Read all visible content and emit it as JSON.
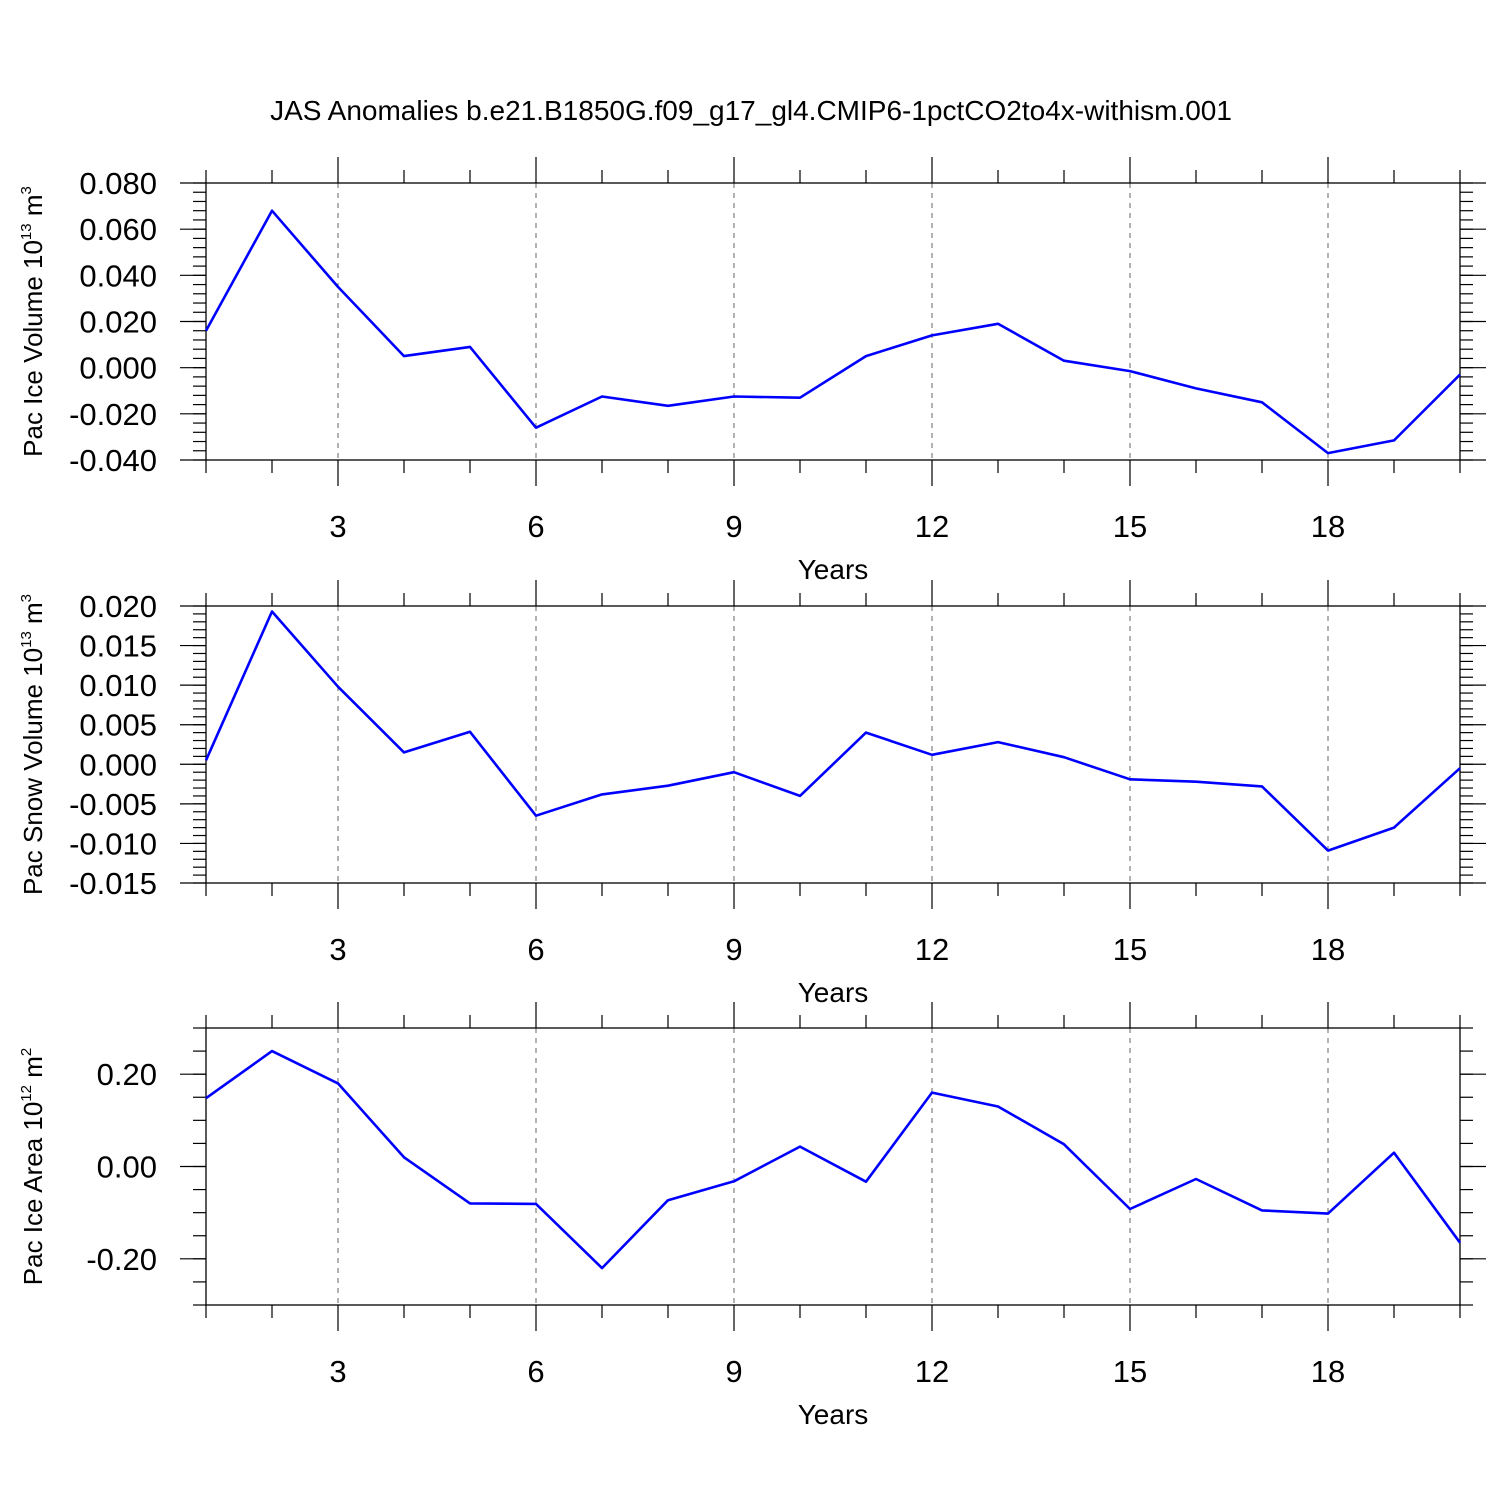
{
  "title": "JAS Anomalies b.e21.B1850G.f09_g17_gl4.CMIP6-1pctCO2to4x-withism.001",
  "colors": {
    "line": "#0000ff",
    "grid": "#808080",
    "axis": "#000000"
  },
  "chart_data": [
    {
      "type": "line",
      "title": "",
      "xlabel": "Years",
      "ylabel_parts": {
        "text": "Pac Ice Volume 10",
        "exp": "13",
        "unit": " m",
        "unit_exp": "3"
      },
      "xlim": [
        1,
        20
      ],
      "ylim": [
        -0.04,
        0.08
      ],
      "xticks": [
        3,
        6,
        9,
        12,
        15,
        18
      ],
      "xtick_labels": [
        "3",
        "6",
        "9",
        "12",
        "15",
        "18"
      ],
      "yticks": [
        -0.04,
        -0.02,
        0.0,
        0.02,
        0.04,
        0.06,
        0.08
      ],
      "ytick_labels": [
        "-0.040",
        "-0.020",
        "0.000",
        "0.020",
        "0.040",
        "0.060",
        "0.080"
      ],
      "y_minor_step": 0.004,
      "grid": "vertical dashed at major x ticks",
      "series": [
        {
          "name": "Pac Ice Volume",
          "x": [
            1,
            2,
            3,
            4,
            5,
            6,
            7,
            8,
            9,
            10,
            11,
            12,
            13,
            14,
            15,
            16,
            17,
            18,
            19,
            20
          ],
          "values": [
            0.016,
            0.068,
            0.035,
            0.005,
            0.009,
            -0.026,
            -0.0125,
            -0.0165,
            -0.0125,
            -0.013,
            0.005,
            0.014,
            0.019,
            0.003,
            -0.0015,
            -0.009,
            -0.015,
            -0.037,
            -0.0315,
            -0.003
          ]
        }
      ]
    },
    {
      "type": "line",
      "title": "",
      "xlabel": "Years",
      "ylabel_parts": {
        "text": "Pac Snow Volume 10",
        "exp": "13",
        "unit": " m",
        "unit_exp": "3"
      },
      "xlim": [
        1,
        20
      ],
      "ylim": [
        -0.015,
        0.02
      ],
      "xticks": [
        3,
        6,
        9,
        12,
        15,
        18
      ],
      "xtick_labels": [
        "3",
        "6",
        "9",
        "12",
        "15",
        "18"
      ],
      "yticks": [
        -0.015,
        -0.01,
        -0.005,
        0.0,
        0.005,
        0.01,
        0.015,
        0.02
      ],
      "ytick_labels": [
        "-0.015",
        "-0.010",
        "-0.005",
        "0.000",
        "0.005",
        "0.010",
        "0.015",
        "0.020"
      ],
      "y_minor_step": 0.001,
      "grid": "vertical dashed at major x ticks",
      "series": [
        {
          "name": "Pac Snow Volume",
          "x": [
            1,
            2,
            3,
            4,
            5,
            6,
            7,
            8,
            9,
            10,
            11,
            12,
            13,
            14,
            15,
            16,
            17,
            18,
            19,
            20
          ],
          "values": [
            0.0005,
            0.0193,
            0.0098,
            0.0015,
            0.0041,
            -0.0065,
            -0.0038,
            -0.0027,
            -0.001,
            -0.004,
            0.004,
            0.0012,
            0.0028,
            0.0009,
            -0.0019,
            -0.0022,
            -0.0028,
            -0.0109,
            -0.008,
            -0.0005
          ]
        }
      ]
    },
    {
      "type": "line",
      "title": "",
      "xlabel": "Years",
      "ylabel_parts": {
        "text": "Pac Ice Area 10",
        "exp": "12",
        "unit": " m",
        "unit_exp": "2"
      },
      "xlim": [
        1,
        20
      ],
      "ylim": [
        -0.3,
        0.3
      ],
      "xticks": [
        3,
        6,
        9,
        12,
        15,
        18
      ],
      "xtick_labels": [
        "3",
        "6",
        "9",
        "12",
        "15",
        "18"
      ],
      "yticks": [
        -0.2,
        0.0,
        0.2
      ],
      "ytick_labels": [
        "-0.20",
        "0.00",
        "0.20"
      ],
      "y_minor_step": 0.05,
      "grid": "vertical dashed at major x ticks",
      "series": [
        {
          "name": "Pac Ice Area",
          "x": [
            1,
            2,
            3,
            4,
            5,
            6,
            7,
            8,
            9,
            10,
            11,
            12,
            13,
            14,
            15,
            16,
            17,
            18,
            19,
            20
          ],
          "values": [
            0.148,
            0.25,
            0.18,
            0.02,
            -0.08,
            -0.081,
            -0.22,
            -0.073,
            -0.032,
            0.043,
            -0.033,
            0.16,
            0.13,
            0.048,
            -0.092,
            -0.027,
            -0.095,
            -0.102,
            0.03,
            -0.165
          ]
        }
      ]
    }
  ]
}
